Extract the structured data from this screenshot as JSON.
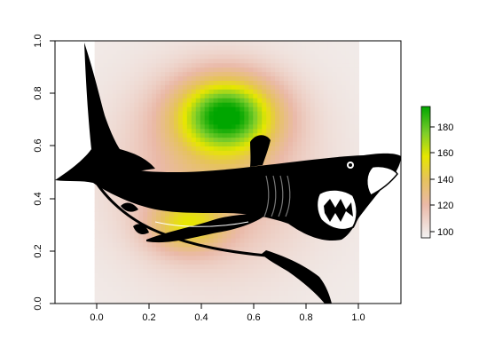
{
  "chart_data": {
    "type": "heatmap",
    "title": "",
    "xlabel": "",
    "ylabel": "",
    "xlim": [
      -0.15,
      1.16
    ],
    "ylim": [
      0.0,
      1.0
    ],
    "grid": false,
    "image_extent": {
      "x": [
        0.0,
        1.0
      ],
      "y": [
        0.0,
        1.0
      ]
    },
    "x_ticks": [
      "0.0",
      "0.2",
      "0.4",
      "0.6",
      "0.8",
      "1.0"
    ],
    "y_ticks": [
      "0.0",
      "0.2",
      "0.4",
      "0.6",
      "0.8",
      "1.0"
    ],
    "colorbar": {
      "placement": "right",
      "range": [
        95,
        195
      ],
      "ticks": [
        "100",
        "120",
        "140",
        "160",
        "180"
      ],
      "colors": [
        "#f2f2f2",
        "#eab9a8",
        "#e6c35a",
        "#e6e600",
        "#7ccd2b",
        "#00a600"
      ]
    },
    "heat_peaks": [
      {
        "x": 0.5,
        "y": 0.72,
        "value": 195
      },
      {
        "x": 0.35,
        "y": 0.3,
        "value": 160
      }
    ],
    "overlay": "shark-silhouette"
  }
}
